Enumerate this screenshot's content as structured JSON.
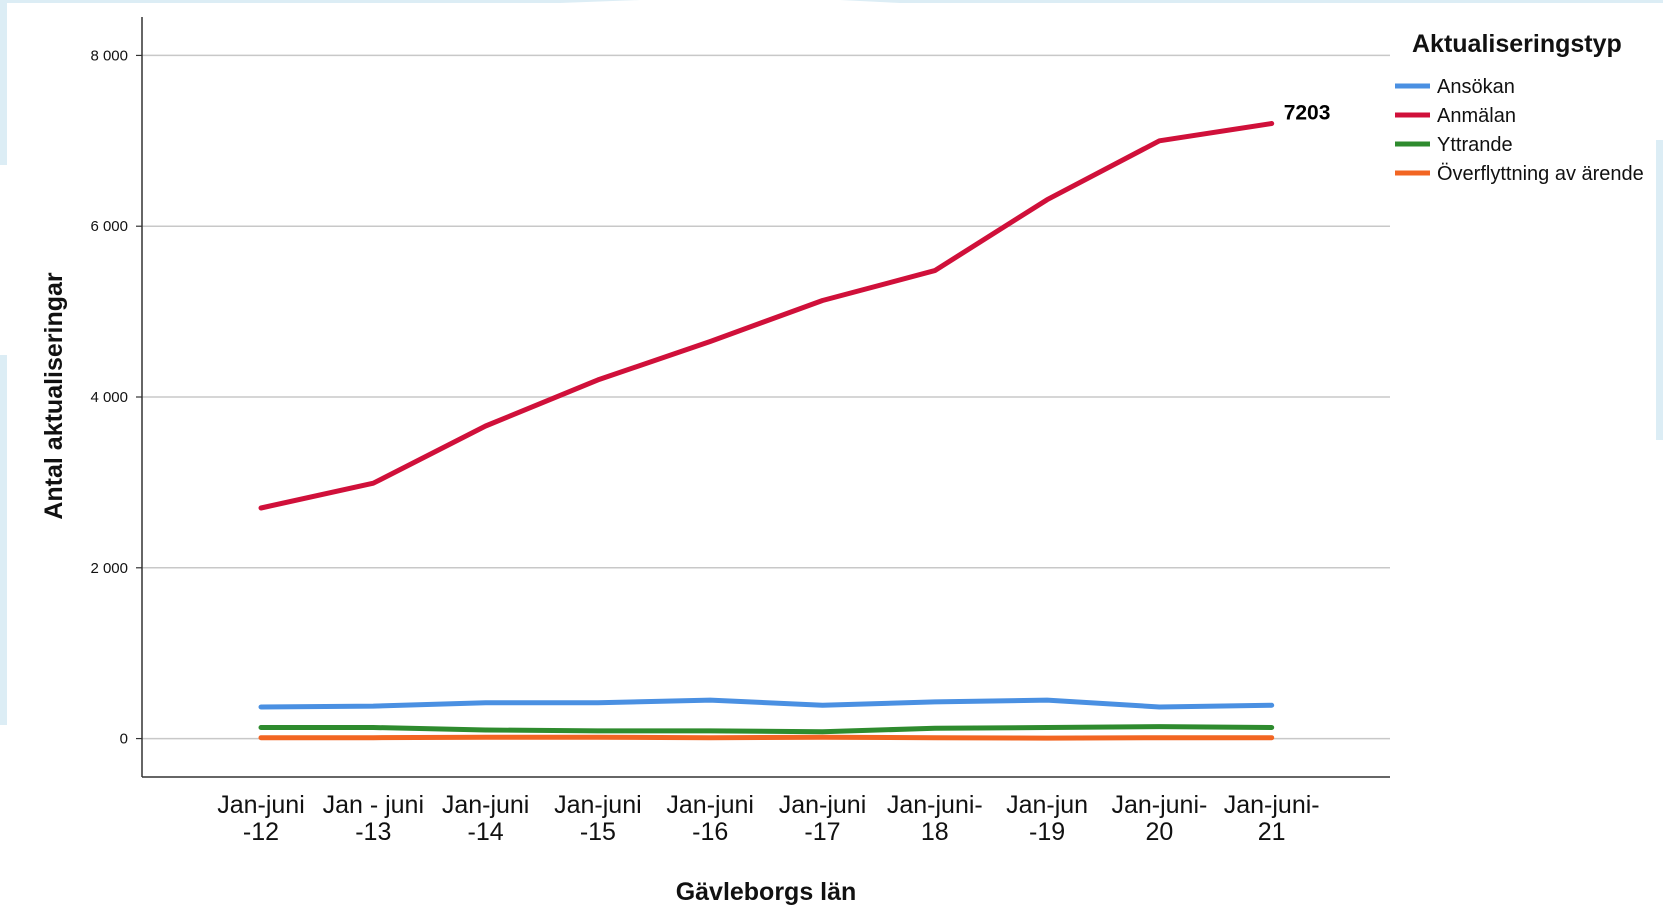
{
  "chart_data": {
    "type": "line",
    "title": "",
    "xlabel": "Gävleborgs län",
    "ylabel": "Antal aktualiseringar",
    "categories": [
      [
        "Jan-juni",
        "-12"
      ],
      [
        "Jan - juni",
        "-13"
      ],
      [
        "Jan-juni",
        "-14"
      ],
      [
        "Jan-juni",
        "-15"
      ],
      [
        "Jan-juni",
        "-16"
      ],
      [
        "Jan-juni",
        "-17"
      ],
      [
        "Jan-juni-",
        "18"
      ],
      [
        "Jan-jun",
        "-19"
      ],
      [
        "Jan-juni-",
        "20"
      ],
      [
        "Jan-juni-",
        "21"
      ]
    ],
    "ylim": [
      -450,
      8450
    ],
    "yticks": [
      0,
      2000,
      4000,
      6000,
      8000
    ],
    "ytick_labels": [
      "0",
      "2 000",
      "4 000",
      "6 000",
      "8 000"
    ],
    "grid": true,
    "legend": {
      "title": "Aktualiseringstyp",
      "placement": "top-right"
    },
    "series": [
      {
        "name": "Ansökan",
        "color": "#4a90e2",
        "values": [
          370,
          380,
          420,
          420,
          450,
          390,
          430,
          450,
          370,
          390
        ]
      },
      {
        "name": "Anmälan",
        "color": "#d0103a",
        "values": [
          2700,
          2990,
          3660,
          4200,
          4650,
          5130,
          5480,
          6310,
          7000,
          7203
        ]
      },
      {
        "name": "Yttrande",
        "color": "#2e8b2e",
        "values": [
          130,
          130,
          100,
          90,
          90,
          80,
          120,
          130,
          140,
          130
        ]
      },
      {
        "name": "Överflyttning av ärende",
        "color": "#f26522",
        "values": [
          10,
          10,
          15,
          15,
          10,
          15,
          10,
          5,
          10,
          10
        ]
      }
    ],
    "annotations": [
      {
        "text": "7203",
        "series": "Anmälan",
        "index": 9
      }
    ]
  }
}
